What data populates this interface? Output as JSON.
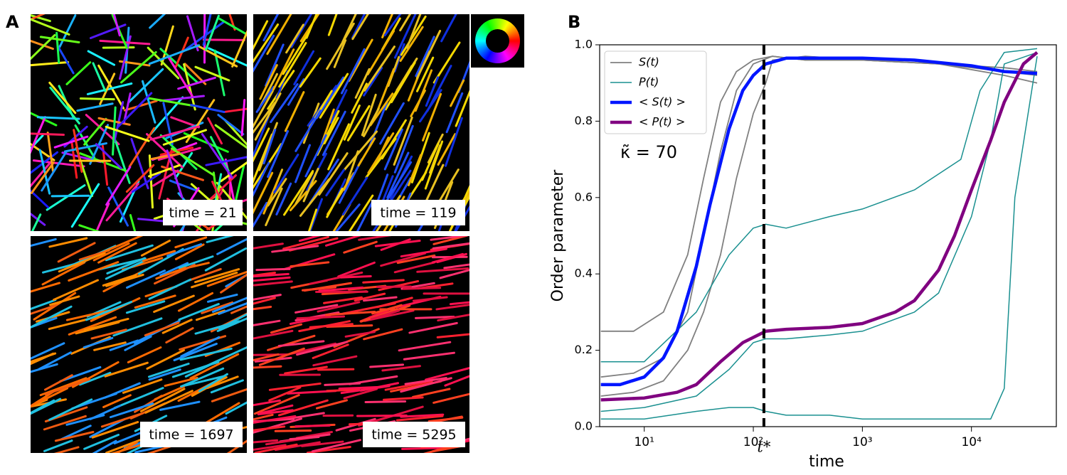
{
  "panel_a": {
    "label": "A",
    "snapshots": [
      {
        "time_label": "time = 21"
      },
      {
        "time_label": "time = 119"
      },
      {
        "time_label": "time = 1697"
      },
      {
        "time_label": "time = 5295"
      }
    ]
  },
  "chart_data": {
    "type": "line",
    "panel_label": "B",
    "xlabel": "time",
    "ylabel": "Order parameter",
    "xscale": "log",
    "xlim": [
      3.9,
      60000
    ],
    "ylim": [
      0,
      1.0
    ],
    "xticks": [
      {
        "value": 10,
        "label": "10¹"
      },
      {
        "value": 100,
        "label": "10²"
      },
      {
        "value": 1000,
        "label": "10³"
      },
      {
        "value": 10000,
        "label": "10⁴"
      }
    ],
    "yticks": [
      {
        "value": 0,
        "label": "0.0"
      },
      {
        "value": 0.2,
        "label": "0.2"
      },
      {
        "value": 0.4,
        "label": "0.4"
      },
      {
        "value": 0.6,
        "label": "0.6"
      },
      {
        "value": 0.8,
        "label": "0.8"
      },
      {
        "value": 1.0,
        "label": "1.0"
      }
    ],
    "legend": "upper left",
    "annotations": [
      {
        "text": "κ̃ = 70"
      },
      {
        "text": "t*",
        "x": 125
      }
    ],
    "series": [
      {
        "name": "S(t)",
        "color": "#808080",
        "width": 1.8,
        "x": [
          4,
          8,
          15,
          25,
          35,
          50,
          70,
          100,
          150,
          300,
          1000,
          5000,
          20000,
          40000
        ],
        "values": [
          0.25,
          0.25,
          0.3,
          0.45,
          0.65,
          0.85,
          0.93,
          0.96,
          0.97,
          0.96,
          0.96,
          0.95,
          0.94,
          0.93
        ]
      },
      {
        "name": null,
        "color": "#808080",
        "width": 1.8,
        "x": [
          4,
          8,
          15,
          25,
          35,
          50,
          70,
          100,
          150,
          300,
          1000,
          5000,
          20000,
          40000
        ],
        "values": [
          0.13,
          0.14,
          0.18,
          0.3,
          0.5,
          0.72,
          0.88,
          0.95,
          0.97,
          0.96,
          0.96,
          0.95,
          0.92,
          0.9
        ]
      },
      {
        "name": null,
        "color": "#808080",
        "width": 1.8,
        "x": [
          4,
          8,
          15,
          25,
          35,
          50,
          70,
          100,
          130,
          150,
          300,
          1000,
          5000,
          20000,
          40000
        ],
        "values": [
          0.08,
          0.09,
          0.12,
          0.2,
          0.3,
          0.45,
          0.65,
          0.82,
          0.9,
          0.96,
          0.97,
          0.96,
          0.95,
          0.93,
          0.92
        ]
      },
      {
        "name": "P(t)",
        "color": "#1a9090",
        "width": 1.5,
        "x": [
          4,
          10,
          30,
          60,
          100,
          130,
          200,
          500,
          1000,
          3000,
          8000,
          12000,
          20000,
          40000
        ],
        "values": [
          0.17,
          0.17,
          0.3,
          0.45,
          0.52,
          0.53,
          0.52,
          0.55,
          0.57,
          0.62,
          0.7,
          0.88,
          0.98,
          0.99
        ]
      },
      {
        "name": null,
        "color": "#1a9090",
        "width": 1.5,
        "x": [
          4,
          10,
          30,
          60,
          100,
          130,
          200,
          500,
          1000,
          3000,
          5000,
          10000,
          15000,
          20000,
          40000
        ],
        "values": [
          0.04,
          0.05,
          0.08,
          0.15,
          0.22,
          0.23,
          0.23,
          0.24,
          0.25,
          0.3,
          0.35,
          0.55,
          0.75,
          0.95,
          0.98
        ]
      },
      {
        "name": null,
        "color": "#1a9090",
        "width": 1.5,
        "x": [
          4,
          10,
          30,
          60,
          100,
          130,
          200,
          500,
          1000,
          3000,
          10000,
          15000,
          20000,
          25000,
          40000
        ],
        "values": [
          0.02,
          0.02,
          0.04,
          0.05,
          0.05,
          0.04,
          0.03,
          0.03,
          0.02,
          0.02,
          0.02,
          0.02,
          0.1,
          0.6,
          0.97
        ]
      },
      {
        "name": "< S(t) >",
        "color": "#0015ff",
        "width": 4.5,
        "x": [
          4,
          6,
          10,
          15,
          20,
          30,
          40,
          60,
          80,
          100,
          130,
          200,
          500,
          1000,
          3000,
          10000,
          20000,
          40000
        ],
        "values": [
          0.11,
          0.11,
          0.13,
          0.18,
          0.25,
          0.42,
          0.58,
          0.78,
          0.88,
          0.92,
          0.95,
          0.965,
          0.965,
          0.965,
          0.96,
          0.945,
          0.93,
          0.925
        ]
      },
      {
        "name": "< P(t) >",
        "color": "#800080",
        "width": 4.5,
        "x": [
          4,
          10,
          20,
          30,
          50,
          80,
          130,
          200,
          500,
          1000,
          2000,
          3000,
          5000,
          7000,
          10000,
          15000,
          20000,
          30000,
          40000
        ],
        "values": [
          0.07,
          0.075,
          0.09,
          0.11,
          0.17,
          0.22,
          0.25,
          0.255,
          0.26,
          0.27,
          0.3,
          0.33,
          0.41,
          0.5,
          0.62,
          0.75,
          0.85,
          0.95,
          0.98
        ]
      }
    ]
  }
}
